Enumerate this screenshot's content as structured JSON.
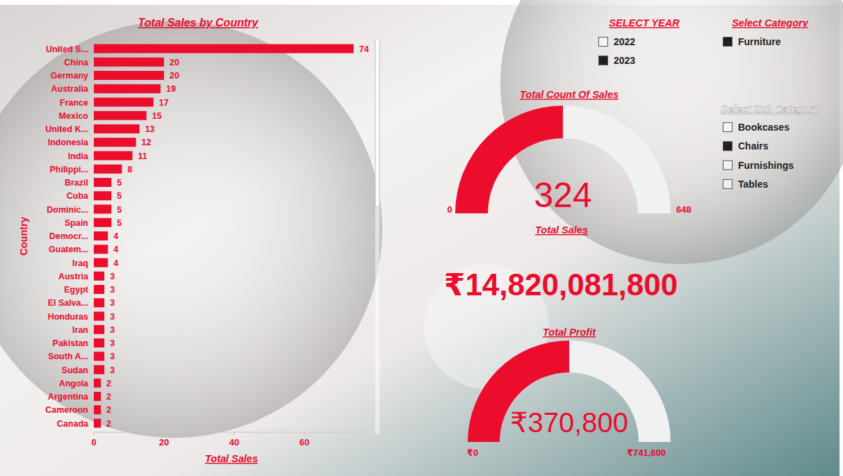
{
  "chart_data": [
    {
      "type": "bar",
      "title": "Total Sales by Country",
      "orientation": "horizontal",
      "categories": [
        "United S...",
        "China",
        "Germany",
        "Australia",
        "France",
        "Mexico",
        "United K...",
        "Indonesia",
        "India",
        "Philippi...",
        "Brazil",
        "Cuba",
        "Dominic...",
        "Spain",
        "Democr...",
        "Guatem...",
        "Iraq",
        "Austria",
        "Egypt",
        "El Salva...",
        "Honduras",
        "Iran",
        "Pakistan",
        "South A...",
        "Sudan",
        "Angola",
        "Argentina",
        "Cameroon",
        "Canada"
      ],
      "values": [
        74,
        20,
        20,
        19,
        17,
        15,
        13,
        12,
        11,
        8,
        5,
        5,
        5,
        5,
        4,
        4,
        4,
        3,
        3,
        3,
        3,
        3,
        3,
        3,
        3,
        2,
        2,
        2,
        2
      ],
      "color": "#ec0c2c",
      "xlim": [
        0,
        78
      ],
      "xticks": [
        0,
        20,
        40,
        60
      ],
      "x_label": "Total Sales",
      "y_label": "Country",
      "data_labels": true,
      "grid": false
    },
    {
      "type": "gauge",
      "title": "Total Count Of Sales",
      "values": [
        324
      ],
      "color": "#ec0c2c",
      "ylim": [
        0,
        648
      ],
      "yticks": [
        0,
        648
      ],
      "data_labels": true
    },
    {
      "type": "card",
      "title": "Total Sales",
      "values": [
        14820081800
      ],
      "value_labels": [
        "₹14,820,081,800"
      ],
      "color": "#ec0c2c"
    },
    {
      "type": "gauge",
      "title": "Total Profit",
      "values": [
        370800
      ],
      "value_labels": [
        "₹370,800"
      ],
      "color": "#ec0c2c",
      "ylim": [
        0,
        741600
      ],
      "yticks": [
        {
          "value": 0,
          "label": "₹0"
        },
        {
          "value": 741600,
          "label": "₹741,600"
        }
      ],
      "data_labels": true
    }
  ],
  "slicers": [
    {
      "title": "SELECT YEAR",
      "options": [
        {
          "label": "2022",
          "selected": false
        },
        {
          "label": "2023",
          "selected": true
        }
      ]
    },
    {
      "title": "Select Category",
      "options": [
        {
          "label": "Furniture",
          "selected": true
        }
      ]
    },
    {
      "title": "Select Sub Category",
      "options": [
        {
          "label": "Bookcases",
          "selected": false
        },
        {
          "label": "Chairs",
          "selected": true
        },
        {
          "label": "Furnishings",
          "selected": false
        },
        {
          "label": "Tables",
          "selected": false
        }
      ]
    }
  ]
}
